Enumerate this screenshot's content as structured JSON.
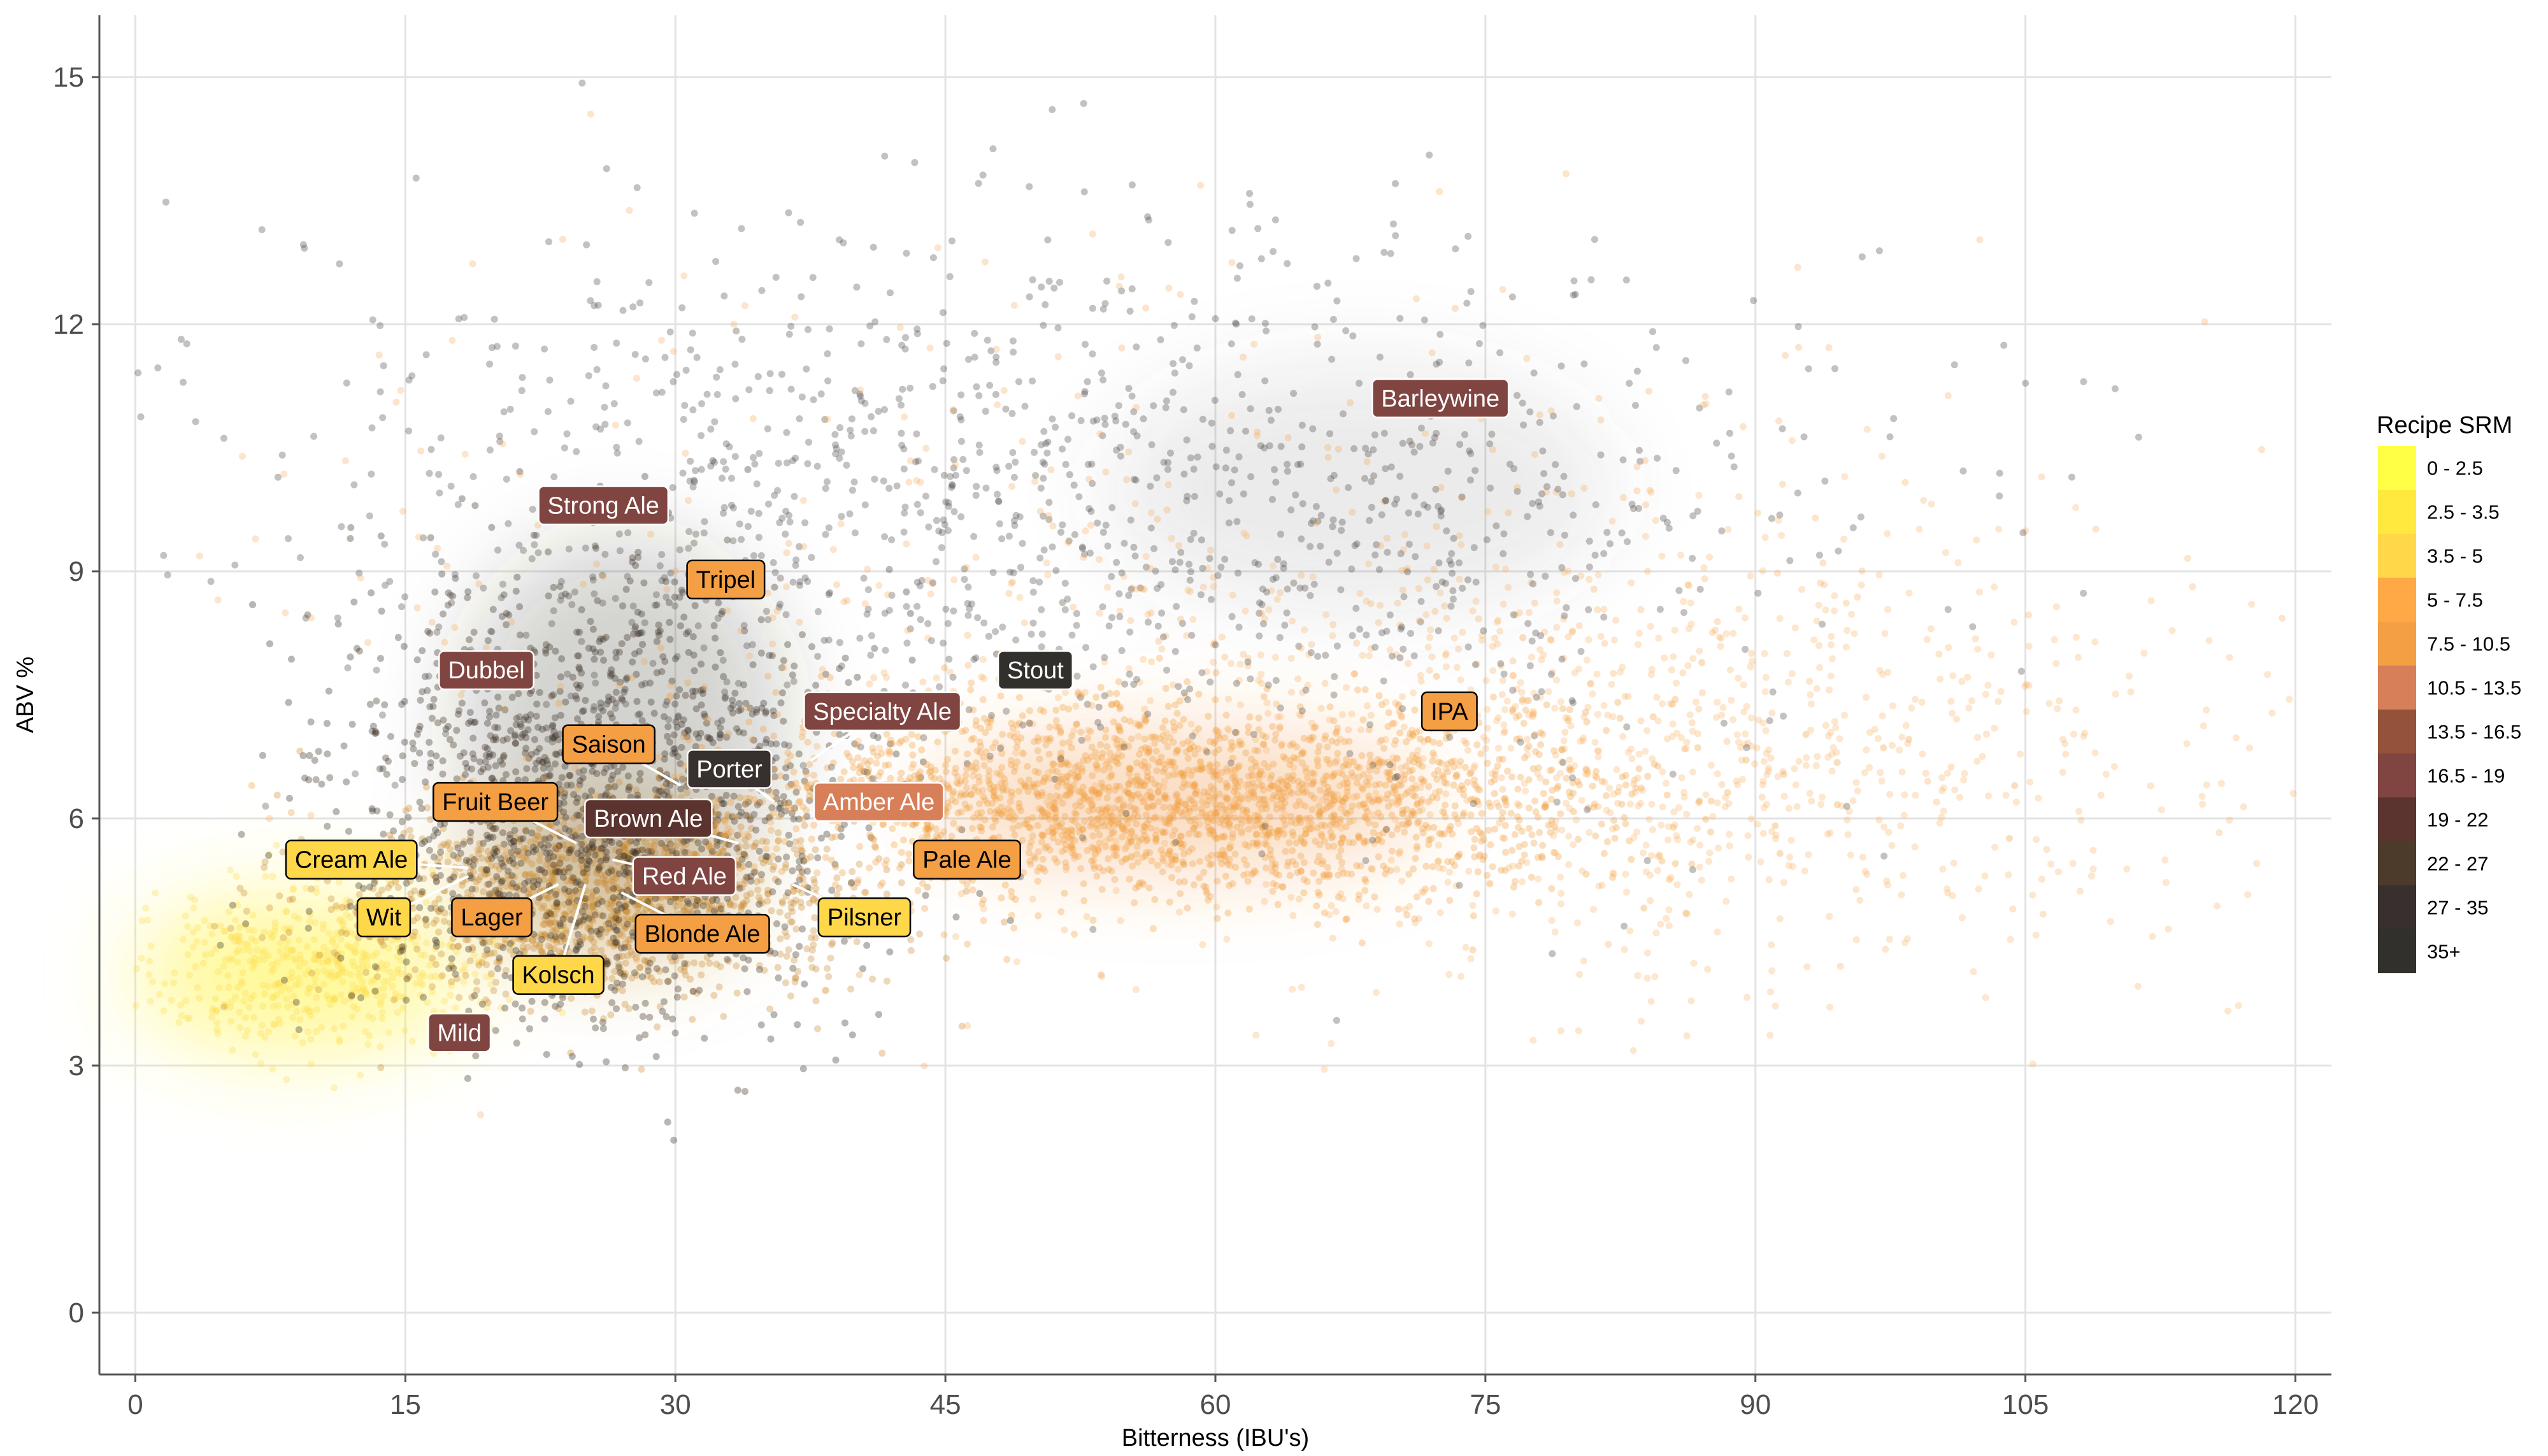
{
  "chart_data": {
    "type": "scatter",
    "title": "",
    "xlabel": "Bitterness (IBU's)",
    "ylabel": "ABV %",
    "xlim": [
      -2,
      122
    ],
    "ylim": [
      -0.75,
      15.75
    ],
    "x_ticks": [
      0,
      15,
      30,
      45,
      60,
      75,
      90,
      105,
      120
    ],
    "y_ticks": [
      0,
      3,
      6,
      9,
      12,
      15
    ],
    "grid": true,
    "legend": {
      "title": "Recipe SRM",
      "placement": "right",
      "items": [
        {
          "label": "0 - 2.5",
          "color": "#ffff45"
        },
        {
          "label": "2.5 - 3.5",
          "color": "#ffe93e"
        },
        {
          "label": "3.5 - 5",
          "color": "#fed849"
        },
        {
          "label": "5 - 7.5",
          "color": "#ffa846"
        },
        {
          "label": "7.5 - 10.5",
          "color": "#f49f44"
        },
        {
          "label": "10.5 - 13.5",
          "color": "#d77f59"
        },
        {
          "label": "13.5 - 16.5",
          "color": "#94523a"
        },
        {
          "label": "16.5 - 19",
          "color": "#804541"
        },
        {
          "label": "19 - 22",
          "color": "#5b342f"
        },
        {
          "label": "22 - 27",
          "color": "#4c3b2b"
        },
        {
          "label": "27 - 35",
          "color": "#38302e"
        },
        {
          "label": "35+",
          "color": "#31302c"
        }
      ]
    },
    "style_labels": [
      {
        "label": "Barleywine",
        "x": 72.5,
        "y": 11.1,
        "color": "#804541",
        "text_color": "#ffffff"
      },
      {
        "label": "Strong Ale",
        "x": 26,
        "y": 9.8,
        "color": "#804541",
        "text_color": "#ffffff"
      },
      {
        "label": "Tripel",
        "x": 32.8,
        "y": 8.9,
        "color": "#f49f44",
        "text_color": "#000000"
      },
      {
        "label": "Dubbel",
        "x": 19.5,
        "y": 7.8,
        "color": "#804541",
        "text_color": "#ffffff"
      },
      {
        "label": "Stout",
        "x": 50,
        "y": 7.8,
        "color": "#31302c",
        "text_color": "#ffffff"
      },
      {
        "label": "Specialty Ale",
        "x": 41.5,
        "y": 7.3,
        "color": "#804541",
        "text_color": "#ffffff"
      },
      {
        "label": "IPA",
        "x": 73,
        "y": 7.3,
        "color": "#f49f44",
        "text_color": "#000000"
      },
      {
        "label": "Saison",
        "x": 26.3,
        "y": 6.9,
        "color": "#f49f44",
        "text_color": "#000000"
      },
      {
        "label": "Porter",
        "x": 33,
        "y": 6.6,
        "color": "#38302e",
        "text_color": "#ffffff"
      },
      {
        "label": "Fruit Beer",
        "x": 20,
        "y": 6.2,
        "color": "#f49f44",
        "text_color": "#000000"
      },
      {
        "label": "Amber Ale",
        "x": 41.3,
        "y": 6.2,
        "color": "#d77f59",
        "text_color": "#ffffff"
      },
      {
        "label": "Brown Ale",
        "x": 28.5,
        "y": 6.0,
        "color": "#5b342f",
        "text_color": "#ffffff"
      },
      {
        "label": "Cream Ale",
        "x": 12,
        "y": 5.5,
        "color": "#fed849",
        "text_color": "#000000"
      },
      {
        "label": "Pale Ale",
        "x": 46.2,
        "y": 5.5,
        "color": "#f49f44",
        "text_color": "#000000"
      },
      {
        "label": "Red Ale",
        "x": 30.5,
        "y": 5.3,
        "color": "#804541",
        "text_color": "#ffffff"
      },
      {
        "label": "Wit",
        "x": 13.8,
        "y": 4.8,
        "color": "#fed849",
        "text_color": "#000000"
      },
      {
        "label": "Lager",
        "x": 19.8,
        "y": 4.8,
        "color": "#f49f44",
        "text_color": "#000000"
      },
      {
        "label": "Pilsner",
        "x": 40.5,
        "y": 4.8,
        "color": "#fed849",
        "text_color": "#000000"
      },
      {
        "label": "Blonde Ale",
        "x": 31.5,
        "y": 4.6,
        "color": "#f49f44",
        "text_color": "#000000"
      },
      {
        "label": "Kolsch",
        "x": 23.5,
        "y": 4.1,
        "color": "#fed849",
        "text_color": "#000000"
      },
      {
        "label": "Mild",
        "x": 18,
        "y": 3.4,
        "color": "#804541",
        "text_color": "#ffffff"
      }
    ],
    "clusters": [
      {
        "name": "pale-low-abv",
        "x": 10,
        "y": 4.2,
        "sx": 5,
        "sy": 0.5,
        "n": 500,
        "color": "#fcd94a",
        "opacity": 0.3
      },
      {
        "name": "blonde-lager",
        "x": 26,
        "y": 5.0,
        "sx": 7,
        "sy": 0.6,
        "n": 1400,
        "color": "#c88a2e",
        "opacity": 0.33
      },
      {
        "name": "dark-core",
        "x": 26,
        "y": 6.2,
        "sx": 7,
        "sy": 1.3,
        "n": 1600,
        "color": "#3a2e22",
        "opacity": 0.35
      },
      {
        "name": "pale-ale-ipa",
        "x": 58,
        "y": 6.2,
        "sx": 13,
        "sy": 0.6,
        "n": 2200,
        "color": "#ef9d3e",
        "opacity": 0.33
      },
      {
        "name": "ipa-spread",
        "x": 82,
        "y": 6.8,
        "sx": 18,
        "sy": 1.4,
        "n": 1100,
        "color": "#f7b060",
        "opacity": 0.3
      },
      {
        "name": "strong-dark",
        "x": 50,
        "y": 9.8,
        "sx": 22,
        "sy": 1.7,
        "n": 1300,
        "color": "#4a4642",
        "opacity": 0.33
      },
      {
        "name": "imperial-orange",
        "x": 55,
        "y": 8.8,
        "sx": 28,
        "sy": 2.0,
        "n": 400,
        "color": "#f5a247",
        "opacity": 0.28
      }
    ]
  }
}
